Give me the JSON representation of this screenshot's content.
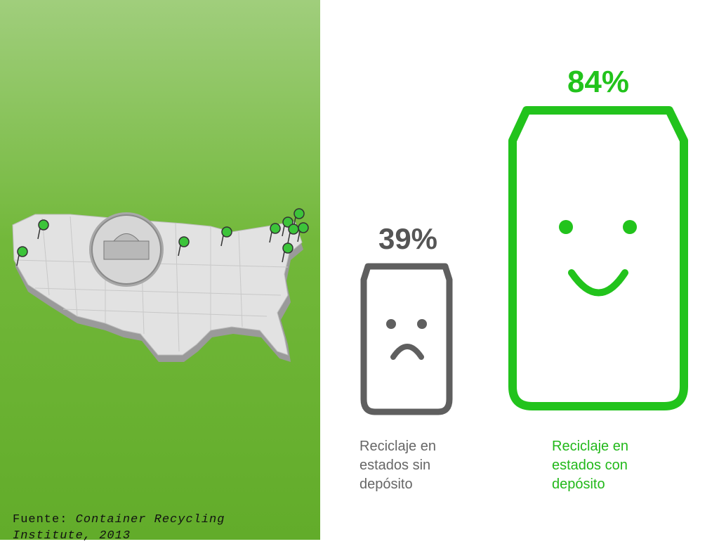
{
  "items": [
    {
      "value": "39%",
      "label": "Reciclaje en estados sin depósito"
    },
    {
      "value": "84%",
      "label": "Reciclaje en estados con depósito"
    }
  ],
  "source": {
    "label": "Fuente:",
    "text": "Container Recycling Institute, 2013"
  }
}
